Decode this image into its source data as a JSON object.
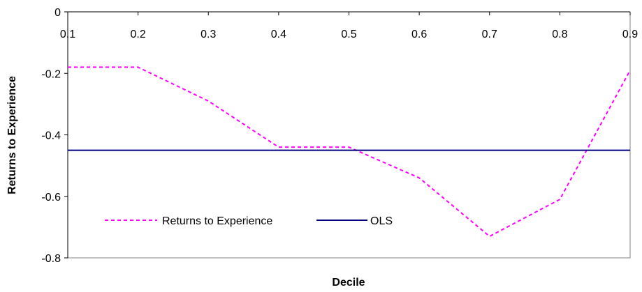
{
  "chart_data": {
    "type": "line",
    "title": "",
    "xlabel": "Decile",
    "ylabel": "Returns to Experience",
    "xlim": [
      0.1,
      0.9
    ],
    "ylim": [
      -0.8,
      0
    ],
    "x_ticks": [
      "0.1",
      "0.2",
      "0.3",
      "0.4",
      "0.5",
      "0.6",
      "0.7",
      "0.8",
      "0.9"
    ],
    "y_ticks": [
      "0",
      "-0.2",
      "-0.4",
      "-0.6",
      "-0.8"
    ],
    "x_axis_position": "top, at y = 0",
    "grid": false,
    "legend_position": "lower-left inside plot",
    "series": [
      {
        "name": "Returns to Experience",
        "color": "#ff00ff",
        "line_style": "dashed",
        "x": [
          0.1,
          0.2,
          0.3,
          0.4,
          0.5,
          0.6,
          0.7,
          0.8,
          0.9
        ],
        "y": [
          -0.18,
          -0.18,
          -0.29,
          -0.44,
          -0.44,
          -0.54,
          -0.73,
          -0.61,
          -0.19
        ]
      },
      {
        "name": "OLS",
        "color": "#000080",
        "line_style": "solid",
        "x": [
          0.1,
          0.9
        ],
        "y": [
          -0.45,
          -0.45
        ]
      }
    ]
  }
}
